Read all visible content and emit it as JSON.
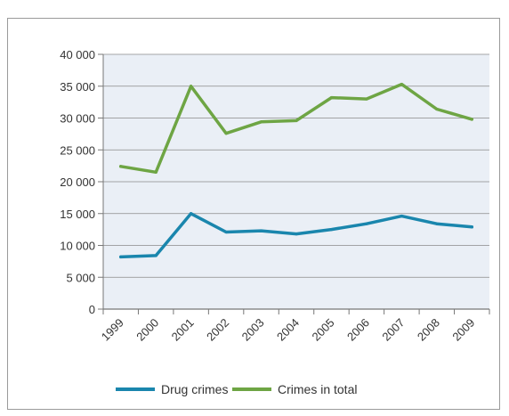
{
  "chart_data": {
    "type": "line",
    "categories": [
      "1999",
      "2000",
      "2001",
      "2002",
      "2003",
      "2004",
      "2005",
      "2006",
      "2007",
      "2008",
      "2009"
    ],
    "series": [
      {
        "name": "Drug crimes",
        "color": "#1a86ad",
        "values": [
          8200,
          8400,
          15000,
          12100,
          12300,
          11800,
          12500,
          13400,
          14600,
          13400,
          12900
        ]
      },
      {
        "name": "Crimes in total",
        "color": "#6ea544",
        "values": [
          22400,
          21500,
          35000,
          27600,
          29400,
          29600,
          33200,
          33000,
          35300,
          31400,
          29800
        ]
      }
    ],
    "y_ticks": [
      "0",
      "5 000",
      "10 000",
      "15 000",
      "20 000",
      "25 000",
      "30 000",
      "35 000",
      "40 000"
    ],
    "ylim": [
      0,
      40000
    ],
    "grid": true,
    "plot_background": "#eaeff6",
    "legend_position": "bottom"
  }
}
